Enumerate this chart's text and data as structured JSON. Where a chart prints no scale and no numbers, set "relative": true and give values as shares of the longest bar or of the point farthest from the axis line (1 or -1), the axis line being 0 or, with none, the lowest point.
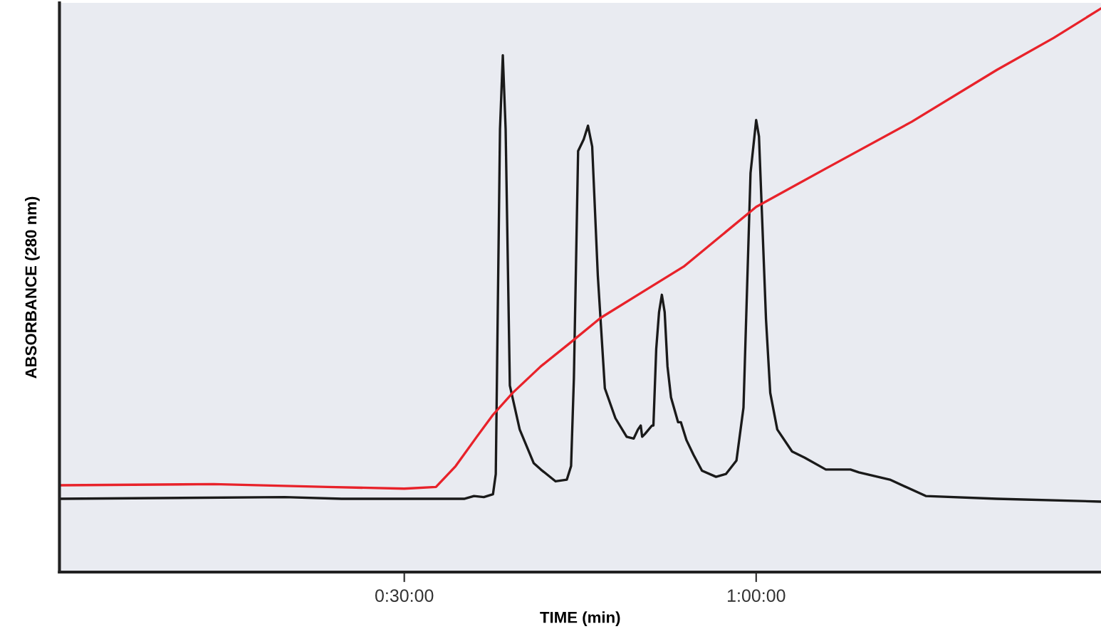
{
  "chart_data": {
    "type": "line",
    "xlabel": "TIME (min)",
    "ylabel": "ABSORBANCE (280 nm)",
    "relative": true,
    "grid": false,
    "legend": false,
    "marker": "none",
    "line_style": "solid",
    "xlim": [
      0.01,
      1.49
    ],
    "xticks": [
      {
        "value": 0.5,
        "label": "0:30:00"
      },
      {
        "value": 1,
        "label": "1:00:00"
      }
    ],
    "series": [
      {
        "color": "#1a1a1a",
        "x": [
          0.01,
          0.33,
          0.411,
          0.585,
          0.599,
          0.613,
          0.626,
          0.63,
          0.636,
          0.64,
          0.644,
          0.65,
          0.664,
          0.684,
          0.694,
          0.715,
          0.731,
          0.737,
          0.741,
          0.747,
          0.755,
          0.761,
          0.767,
          0.775,
          0.785,
          0.8,
          0.816,
          0.826,
          0.832,
          0.836,
          0.838,
          0.842,
          0.852,
          0.854,
          0.858,
          0.862,
          0.866,
          0.87,
          0.874,
          0.879,
          0.889,
          0.893,
          0.901,
          0.911,
          0.923,
          0.943,
          0.957,
          0.972,
          0.982,
          0.992,
          1.0,
          1.004,
          1.014,
          1.02,
          1.03,
          1.051,
          1.069,
          1.099,
          1.134,
          1.146,
          1.19,
          1.241,
          1.342,
          1.49
        ],
        "values": [
          0.13,
          0.133,
          0.13,
          0.13,
          0.135,
          0.133,
          0.138,
          0.174,
          0.786,
          0.917,
          0.786,
          0.331,
          0.253,
          0.193,
          0.182,
          0.161,
          0.164,
          0.188,
          0.344,
          0.747,
          0.768,
          0.792,
          0.755,
          0.526,
          0.326,
          0.273,
          0.24,
          0.237,
          0.253,
          0.26,
          0.24,
          0.245,
          0.26,
          0.26,
          0.396,
          0.461,
          0.492,
          0.461,
          0.365,
          0.31,
          0.266,
          0.266,
          0.234,
          0.208,
          0.18,
          0.169,
          0.174,
          0.198,
          0.292,
          0.708,
          0.802,
          0.773,
          0.448,
          0.318,
          0.253,
          0.214,
          0.203,
          0.182,
          0.182,
          0.177,
          0.164,
          0.135,
          0.13,
          0.125
        ]
      },
      {
        "color": "#e8222a",
        "x": [
          0.01,
          0.229,
          0.391,
          0.5,
          0.545,
          0.573,
          0.603,
          0.626,
          0.654,
          0.694,
          0.735,
          0.779,
          0.836,
          0.897,
          1.0,
          1.099,
          1.221,
          1.342,
          1.423,
          1.49
        ],
        "values": [
          0.154,
          0.156,
          0.151,
          0.148,
          0.151,
          0.188,
          0.24,
          0.279,
          0.318,
          0.365,
          0.406,
          0.451,
          0.495,
          0.542,
          0.648,
          0.716,
          0.799,
          0.891,
          0.948,
          1.0
        ]
      }
    ]
  }
}
